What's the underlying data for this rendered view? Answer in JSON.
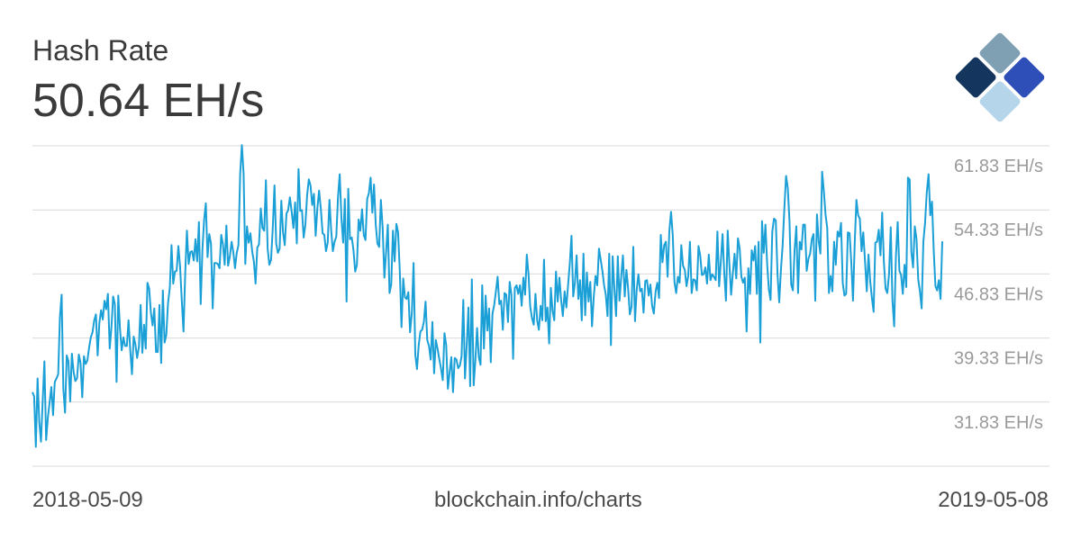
{
  "header": {
    "title": "Hash Rate",
    "value": "50.64 EH/s"
  },
  "footer": {
    "start_date": "2018-05-09",
    "source": "blockchain.info/charts",
    "end_date": "2019-05-08"
  },
  "logo": {
    "icon": "blockchain-logo-icon"
  },
  "colors": {
    "line": "#1a9fd6",
    "grid": "#d9d9d9",
    "tick_text": "#9a9a9a",
    "text": "#3a3a3a"
  },
  "chart_data": {
    "type": "line",
    "title": "Hash Rate",
    "xlabel": "",
    "ylabel": "",
    "x_range": [
      "2018-05-09",
      "2019-05-08"
    ],
    "ylim": [
      24.33,
      61.83
    ],
    "yticks": [
      61.83,
      54.33,
      46.83,
      39.33,
      31.83
    ],
    "ytick_labels": [
      "61.83 EH/s",
      "54.33 EH/s",
      "46.83 EH/s",
      "39.33 EH/s",
      "31.83 EH/s"
    ],
    "grid": true,
    "series": [
      {
        "values": [
          33,
          32.5,
          26.6,
          34.6,
          29.5,
          27.2,
          32,
          36.6,
          27.4,
          30.1,
          31.8,
          33.6,
          30.3,
          34.2,
          34.6,
          35.1,
          41.7,
          44.4,
          33.4,
          30.6,
          37.3,
          36.6,
          31.9,
          37.5,
          35.4,
          34.3,
          34.6,
          37.4,
          36.4,
          32.4,
          37.2,
          36.3,
          36.7,
          38.2,
          39.4,
          40,
          41.4,
          42.1,
          37.3,
          41.1,
          42.6,
          41.5,
          43.7,
          42.7,
          44.5,
          38.1,
          40.6,
          44.2,
          43.3,
          34.2,
          44.3,
          40.4,
          37.9,
          39.4,
          38.4,
          38.4,
          41.4,
          37.9,
          35.1,
          39.5,
          38.6,
          37,
          38.3,
          43.2,
          37.6,
          40.9,
          38.1,
          45.8,
          45.1,
          42.3,
          40.8,
          42.8,
          37.7,
          37.7,
          43.2,
          36.4,
          44.9,
          38.8,
          39.7,
          43.4,
          45.2,
          50.2,
          45.7,
          47.1,
          47.2,
          50.1,
          47.7,
          43.7,
          40.1,
          46.9,
          51.9,
          48,
          49.4,
          49.5,
          48.4,
          50.9,
          48.3,
          52.9,
          43.3,
          49.7,
          53.2,
          55.1,
          48.8,
          51.5,
          50.4,
          42.8,
          48.1,
          48.1,
          48,
          47.5,
          51.4,
          50.3,
          47.9,
          52.5,
          47.8,
          48.9,
          50.6,
          49.4,
          47.5,
          49.3,
          50.2,
          58.5,
          61.9,
          58.6,
          48,
          52.4,
          50.5,
          51.6,
          49.5,
          48.3,
          45.7,
          49.9,
          50.3,
          54.5,
          52.2,
          51.9,
          57.8,
          49.8,
          47.9,
          48.5,
          52.2,
          57.2,
          50.4,
          49.3,
          49.8,
          55.4,
          51.7,
          50.2,
          53.9,
          54.3,
          55.8,
          54.1,
          52.2,
          55.2,
          50.4,
          59.1,
          54.2,
          54.3,
          51.1,
          52.6,
          56,
          57.9,
          57.2,
          54.9,
          56.2,
          51.3,
          54.5,
          56.6,
          54.4,
          51.6,
          51.4,
          49.5,
          50.5,
          55.5,
          52,
          49.5,
          50.6,
          51.2,
          55.8,
          58.5,
          53.4,
          50.5,
          55.6,
          43.6,
          56.8,
          50.9,
          51.1,
          49.6,
          47.1,
          47.9,
          53.2,
          51.9,
          54.4,
          51.4,
          50.8,
          55.6,
          56.3,
          58.1,
          54,
          57.3,
          52.6,
          50.4,
          50,
          55.5,
          52.2,
          46.4,
          49.4,
          52.6,
          44.6,
          45.6,
          51.9,
          48.3,
          52.7,
          51.7,
          47.2,
          40.6,
          46.3,
          44.1,
          43.9,
          44.7,
          40,
          42.3,
          48.1,
          37.4,
          35.7,
          38.5,
          40.1,
          40.3,
          41.2,
          43.6,
          39.1,
          38.4,
          36.8,
          41.2,
          35.2,
          39.1,
          38.1,
          36.9,
          35.8,
          34.4,
          39.9,
          38.5,
          33.4,
          35.3,
          37.1,
          33,
          37,
          36.8,
          35.8,
          36.1,
          37.2,
          43.8,
          34.6,
          38.5,
          42.9,
          33.7,
          46.2,
          33.8,
          36.7,
          40.5,
          37.1,
          36.2,
          45.5,
          38.1,
          44.3,
          40.2,
          42.8,
          36.5,
          42.2,
          43.2,
          44.8,
          46.5,
          43.3,
          43.7,
          40.3,
          44.6,
          44.4,
          41.2,
          45.9,
          44.4,
          36.9,
          45.2,
          45.5,
          44.5,
          45.5,
          43.1,
          46.4,
          44.4,
          49.1,
          46.8,
          43,
          41.7,
          40.9,
          44.5,
          41.4,
          40.3,
          43.1,
          41.4,
          48.5,
          41.3,
          42.9,
          38.7,
          45.2,
          42.5,
          41.4,
          47.1,
          43.6,
          46.4,
          43.8,
          41.9,
          44.8,
          42.9,
          45.5,
          48,
          51.3,
          44.2,
          45.8,
          49,
          43.9,
          46.1,
          41.4,
          49.2,
          42,
          47,
          43.6,
          45.9,
          40.7,
          44.3,
          46.6,
          45.5,
          49.8,
          48.5,
          47.2,
          45.5,
          44.4,
          41.9,
          49.2,
          38.5,
          48.9,
          45.1,
          41.9,
          48.9,
          43.7,
          46.5,
          49,
          44.2,
          47.3,
          45.1,
          42.1,
          43,
          50,
          41.3,
          45,
          46.8,
          44.8,
          45.1,
          42.3,
          46,
          46.1,
          44.3,
          45.6,
          43.1,
          42.2,
          44.8,
          45.8,
          44,
          51.4,
          48.2,
          50.2,
          50.6,
          46.5,
          51.8,
          54.1,
          51.4,
          45.9,
          44.6,
          46.5,
          45.8,
          50.2,
          47.8,
          47.3,
          45.4,
          46.6,
          50.6,
          44.6,
          46.2,
          46.1,
          44.9,
          50.1,
          49,
          46.7,
          46.8,
          47.6,
          45.7,
          49.1,
          46.1,
          46.8,
          46.5,
          46.1,
          51.8,
          45.4,
          48.3,
          51.5,
          46.9,
          43.7,
          51.9,
          47.9,
          44.4,
          46.9,
          49.2,
          46.3,
          51,
          49.8,
          46.5,
          45.8,
          46.4,
          40.1,
          47.5,
          44.5,
          49.6,
          48.4,
          50.1,
          44.5,
          50.6,
          38.8,
          53,
          49.3,
          52.6,
          48,
          45,
          43.8,
          51.8,
          53.3,
          53.1,
          46.8,
          43.5,
          47.3,
          50.2,
          54.5,
          58.3,
          56.9,
          53,
          45.6,
          44.9,
          49.7,
          52.4,
          44.6,
          50.6,
          49.7,
          52.6,
          52.6,
          47.2,
          48.6,
          49.2,
          50.9,
          51.5,
          43.7,
          53.8,
          50.7,
          49.2,
          58.8,
          56.6,
          53.8,
          52.2,
          44.6,
          46.6,
          44.8,
          50.6,
          47.9,
          51.8,
          51.2,
          52.8,
          45.8,
          44.3,
          44.5,
          51.7,
          51.6,
          48.2,
          43.7,
          50.4,
          55.5,
          53.7,
          53.3,
          49.5,
          51.7,
          48.4,
          44.8,
          49.1,
          46,
          44,
          42.4,
          50.5,
          50.6,
          52,
          49,
          54,
          48.2,
          45.1,
          44.6,
          46.8,
          52.3,
          43.7,
          40.7,
          48.8,
          52.9,
          47.2,
          46.7,
          44.5,
          47.9,
          45.3,
          58.1,
          57.9,
          49.4,
          47.6,
          52.4,
          50.9,
          46.2,
          44.8,
          42.8,
          50.6,
          52.8,
          56.4,
          58.5,
          53.7,
          55.3,
          49.6,
          45.4,
          44.9,
          46.1,
          43.9,
          50.64
        ]
      }
    ]
  }
}
